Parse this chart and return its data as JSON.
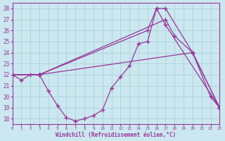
{
  "xlabel": "Windchill (Refroidissement éolien,°C)",
  "xlim": [
    0,
    23
  ],
  "ylim": [
    17.5,
    28.5
  ],
  "yticks": [
    18,
    19,
    20,
    21,
    22,
    23,
    24,
    25,
    26,
    27,
    28
  ],
  "xticks": [
    0,
    1,
    2,
    3,
    4,
    5,
    6,
    7,
    8,
    9,
    10,
    11,
    12,
    13,
    14,
    15,
    16,
    17,
    18,
    19,
    20,
    21,
    22,
    23
  ],
  "bg_color": "#cbe8f0",
  "line_color": "#993399",
  "grid_color": "#aed4dc",
  "series": [
    {
      "x": [
        0,
        1,
        2,
        3,
        4,
        5,
        6,
        7,
        8,
        9,
        10,
        11,
        12,
        13,
        14,
        15,
        16,
        17,
        20,
        22,
        23
      ],
      "y": [
        22,
        21.5,
        22,
        22,
        20.5,
        19.2,
        18.1,
        17.8,
        18.0,
        18.3,
        18.8,
        20.8,
        21.8,
        22.8,
        24.8,
        25.0,
        28.0,
        28.0,
        24.0,
        20.0,
        19.0
      ]
    },
    {
      "x": [
        0,
        3,
        15,
        16,
        17,
        23
      ],
      "y": [
        22,
        22,
        26.0,
        28.0,
        26.5,
        19.0
      ]
    },
    {
      "x": [
        0,
        3,
        17,
        18,
        20,
        23
      ],
      "y": [
        22,
        22,
        27.0,
        25.5,
        24.0,
        19.0
      ]
    },
    {
      "x": [
        0,
        3,
        20,
        23
      ],
      "y": [
        22,
        22,
        24.0,
        19.0
      ]
    }
  ]
}
